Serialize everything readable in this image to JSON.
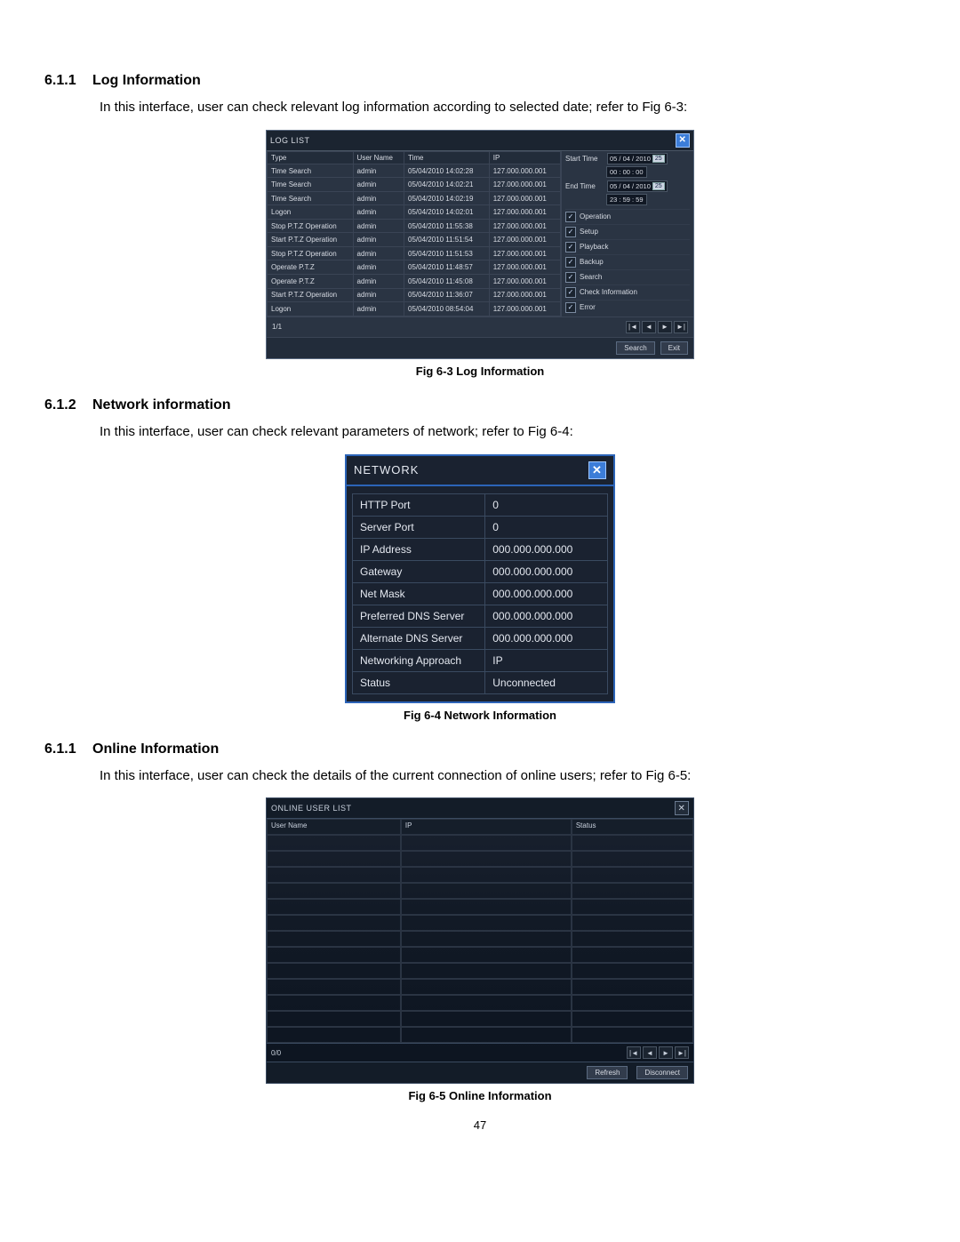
{
  "page_number": "47",
  "sections": {
    "s1": {
      "num": "6.1.1",
      "title": "Log Information",
      "text": "In this interface, user can check relevant log information according to selected date; refer to Fig 6-3:"
    },
    "s2": {
      "num": "6.1.2",
      "title": "Network information",
      "text": "In this interface, user can check relevant parameters of network; refer to Fig 6-4:"
    },
    "s3": {
      "num": "6.1.1",
      "title": "Online Information",
      "text": "In this interface, user can check the details of the current connection of online users; refer to Fig 6-5:"
    }
  },
  "captions": {
    "c1": "Fig 6-3 Log Information",
    "c2": "Fig 6-4 Network Information",
    "c3": "Fig 6-5 Online Information"
  },
  "log_dialog": {
    "title": "LOG LIST",
    "columns": [
      "Type",
      "User Name",
      "Time",
      "IP"
    ],
    "rows": [
      [
        "Time Search",
        "admin",
        "05/04/2010 14:02:28",
        "127.000.000.001"
      ],
      [
        "Time Search",
        "admin",
        "05/04/2010 14:02:21",
        "127.000.000.001"
      ],
      [
        "Time Search",
        "admin",
        "05/04/2010 14:02:19",
        "127.000.000.001"
      ],
      [
        "Logon",
        "admin",
        "05/04/2010 14:02:01",
        "127.000.000.001"
      ],
      [
        "Stop P.T.Z Operation",
        "admin",
        "05/04/2010 11:55:38",
        "127.000.000.001"
      ],
      [
        "Start P.T.Z Operation",
        "admin",
        "05/04/2010 11:51:54",
        "127.000.000.001"
      ],
      [
        "Stop P.T.Z Operation",
        "admin",
        "05/04/2010 11:51:53",
        "127.000.000.001"
      ],
      [
        "Operate P.T.Z",
        "admin",
        "05/04/2010 11:48:57",
        "127.000.000.001"
      ],
      [
        "Operate P.T.Z",
        "admin",
        "05/04/2010 11:45:08",
        "127.000.000.001"
      ],
      [
        "Start P.T.Z Operation",
        "admin",
        "05/04/2010 11:36:07",
        "127.000.000.001"
      ],
      [
        "Logon",
        "admin",
        "05/04/2010 08:54:04",
        "127.000.000.001"
      ]
    ],
    "start_time_label": "Start Time",
    "end_time_label": "End Time",
    "start_date": "05 / 04 / 2010",
    "start_hms": "00 : 00 : 00",
    "end_date": "05 / 04 / 2010",
    "end_hms": "23 : 59 : 59",
    "checks": [
      "Operation",
      "Setup",
      "Playback",
      "Backup",
      "Search",
      "Check Information",
      "Error"
    ],
    "page_counter": "1/1",
    "search_btn": "Search",
    "exit_btn": "Exit"
  },
  "net_dialog": {
    "title": "NETWORK",
    "rows": [
      [
        "HTTP Port",
        "0"
      ],
      [
        "Server Port",
        "0"
      ],
      [
        "IP Address",
        "000.000.000.000"
      ],
      [
        "Gateway",
        "000.000.000.000"
      ],
      [
        "Net Mask",
        "000.000.000.000"
      ],
      [
        "Preferred DNS Server",
        "000.000.000.000"
      ],
      [
        "Alternate DNS Server",
        "000.000.000.000"
      ],
      [
        "Networking Approach",
        "IP"
      ],
      [
        "Status",
        "Unconnected"
      ]
    ]
  },
  "online_dialog": {
    "title": "ONLINE USER LIST",
    "columns": [
      "User Name",
      "IP",
      "Status"
    ],
    "row_count": 13,
    "page_counter": "0/0",
    "refresh_btn": "Refresh",
    "disconnect_btn": "Disconnect"
  },
  "colors": {
    "dlg_bg": "#2a3443",
    "dlg_border": "#5a6a80",
    "dlg_text": "#d8dce4",
    "accent_blue": "#3c7dd8",
    "net_border": "#2c64b8"
  }
}
